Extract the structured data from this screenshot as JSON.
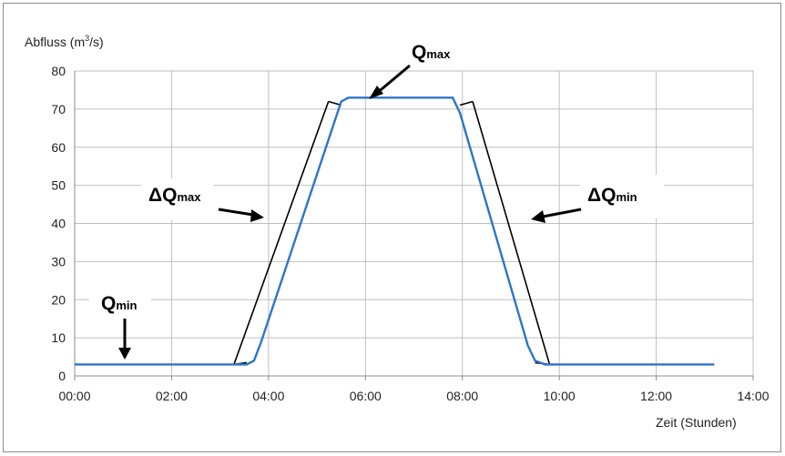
{
  "chart_data": {
    "type": "line",
    "ylabel_prefix": "Abfluss (m",
    "ylabel_sup": "3",
    "ylabel_suffix": "/s)",
    "xlabel": "Zeit (Stunden)",
    "ylim": [
      0,
      80
    ],
    "xlim": [
      0,
      14
    ],
    "grid": true,
    "x_ticks": [
      "00:00",
      "02:00",
      "04:00",
      "06:00",
      "08:00",
      "10:00",
      "12:00",
      "14:00"
    ],
    "y_ticks": [
      "0",
      "10",
      "20",
      "30",
      "40",
      "50",
      "60",
      "70",
      "80"
    ],
    "series": [
      {
        "color": "#2e75c8",
        "x": [
          0,
          3.55,
          3.7,
          3.85,
          5.5,
          5.65,
          5.8,
          7.6,
          7.8,
          7.95,
          9.35,
          9.5,
          9.7,
          13.2
        ],
        "y": [
          3,
          3,
          4,
          9,
          72,
          73,
          73,
          73,
          73,
          69,
          8,
          4,
          3,
          3
        ]
      }
    ],
    "annotations": {
      "q_max": {
        "main": "Q",
        "sub": "max"
      },
      "q_min": {
        "main": "Q",
        "sub": "min"
      },
      "delta_q_max": {
        "main": "ΔQ",
        "sub": "max"
      },
      "delta_q_min": {
        "main": "ΔQ",
        "sub": "min"
      }
    },
    "colors": {
      "line": "#2e75c8",
      "grid": "#bfbfbf",
      "bracket": "#000000"
    }
  }
}
